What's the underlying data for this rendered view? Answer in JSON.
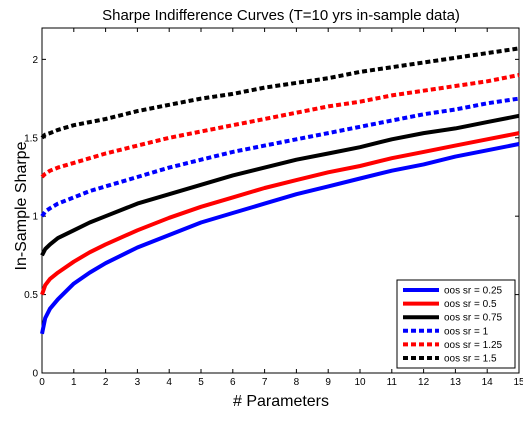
{
  "chart_data": {
    "type": "line",
    "title": "Sharpe Indifference Curves (T=10 yrs in-sample data)",
    "xlabel": "# Parameters",
    "ylabel": "In-Sample Sharpe",
    "xlim": [
      0,
      15
    ],
    "ylim": [
      0,
      2.2
    ],
    "xticks": [
      0,
      1,
      2,
      3,
      4,
      5,
      6,
      7,
      8,
      9,
      10,
      11,
      12,
      13,
      14,
      15
    ],
    "yticks": [
      0,
      0.5,
      1,
      1.5,
      2
    ],
    "ytick_labels": [
      "0",
      "0.5",
      "1",
      "1.5",
      "2"
    ],
    "grid": false,
    "legend_position": "bottom-right",
    "x": [
      0,
      0.1,
      0.25,
      0.5,
      1,
      1.5,
      2,
      3,
      4,
      5,
      6,
      7,
      8,
      9,
      10,
      11,
      12,
      13,
      14,
      15
    ],
    "series": [
      {
        "name": "oos sr = 0.25",
        "color": "#0000ff",
        "style": "solid",
        "values": [
          0.25,
          0.35,
          0.41,
          0.47,
          0.57,
          0.64,
          0.7,
          0.8,
          0.88,
          0.96,
          1.02,
          1.08,
          1.14,
          1.19,
          1.24,
          1.29,
          1.33,
          1.38,
          1.42,
          1.46
        ]
      },
      {
        "name": "oos sr = 0.5",
        "color": "#ff0000",
        "style": "solid",
        "values": [
          0.5,
          0.56,
          0.6,
          0.64,
          0.71,
          0.77,
          0.82,
          0.91,
          0.99,
          1.06,
          1.12,
          1.18,
          1.23,
          1.28,
          1.32,
          1.37,
          1.41,
          1.45,
          1.49,
          1.53
        ]
      },
      {
        "name": "oos sr = 0.75",
        "color": "#000000",
        "style": "solid",
        "values": [
          0.75,
          0.79,
          0.82,
          0.86,
          0.91,
          0.96,
          1.0,
          1.08,
          1.14,
          1.2,
          1.26,
          1.31,
          1.36,
          1.4,
          1.44,
          1.49,
          1.53,
          1.56,
          1.6,
          1.64
        ]
      },
      {
        "name": "oos sr = 1",
        "color": "#0000ff",
        "style": "dashed",
        "values": [
          1.0,
          1.03,
          1.05,
          1.08,
          1.12,
          1.16,
          1.19,
          1.25,
          1.31,
          1.36,
          1.41,
          1.45,
          1.49,
          1.53,
          1.57,
          1.61,
          1.65,
          1.68,
          1.72,
          1.75
        ]
      },
      {
        "name": "oos sr = 1.25",
        "color": "#ff0000",
        "style": "dashed",
        "values": [
          1.25,
          1.27,
          1.29,
          1.31,
          1.34,
          1.37,
          1.4,
          1.45,
          1.5,
          1.54,
          1.58,
          1.62,
          1.66,
          1.7,
          1.73,
          1.77,
          1.8,
          1.83,
          1.86,
          1.9
        ]
      },
      {
        "name": "oos sr = 1.5",
        "color": "#000000",
        "style": "dashed",
        "values": [
          1.5,
          1.52,
          1.53,
          1.55,
          1.58,
          1.6,
          1.62,
          1.67,
          1.71,
          1.75,
          1.78,
          1.82,
          1.85,
          1.88,
          1.92,
          1.95,
          1.98,
          2.01,
          2.04,
          2.07
        ]
      }
    ]
  }
}
